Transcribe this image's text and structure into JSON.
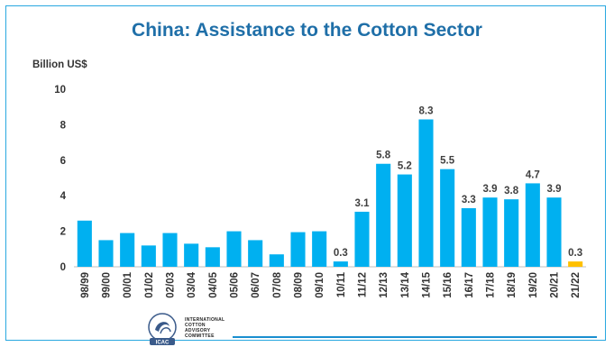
{
  "chart_data": {
    "type": "bar",
    "title": "China: Assistance to the Cotton Sector",
    "ylabel": "Billion US$",
    "xlabel": "",
    "ylim": [
      0,
      10
    ],
    "yticks": [
      0,
      2,
      4,
      6,
      8,
      10
    ],
    "grid": false,
    "legend": "none",
    "categories": [
      "98/99",
      "99/00",
      "00/01",
      "01/02",
      "02/03",
      "03/04",
      "04/05",
      "05/06",
      "06/07",
      "07/08",
      "08/09",
      "09/10",
      "10/11",
      "11/12",
      "12/13",
      "13/14",
      "14/15",
      "15/16",
      "16/17",
      "17/18",
      "18/19",
      "19/20",
      "20/21",
      "21/22"
    ],
    "values": [
      2.6,
      1.5,
      1.9,
      1.2,
      1.9,
      1.3,
      1.1,
      2.0,
      1.5,
      0.7,
      1.95,
      2.0,
      0.3,
      3.1,
      5.8,
      5.2,
      8.3,
      5.5,
      3.3,
      3.9,
      3.8,
      4.7,
      3.9,
      0.3
    ],
    "data_labels": [
      "",
      "",
      "",
      "",
      "",
      "",
      "",
      "",
      "",
      "",
      "",
      "",
      "0.3",
      "3.1",
      "5.8",
      "5.2",
      "8.3",
      "5.5",
      "3.3",
      "3.9",
      "3.8",
      "4.7",
      "3.9",
      "0.3"
    ],
    "bar_color": "#00b0f0",
    "highlight_color": "#ffc000",
    "highlight_categories": [
      "21/22"
    ]
  },
  "logo": {
    "name": "ICAC",
    "lines": [
      "INTERNATIONAL",
      "COTTON",
      "ADVISORY",
      "COMMITTEE"
    ]
  },
  "colors": {
    "title": "#1f6fa8",
    "frame": "#29a8e0",
    "footer_line": "#1a8fd0"
  }
}
